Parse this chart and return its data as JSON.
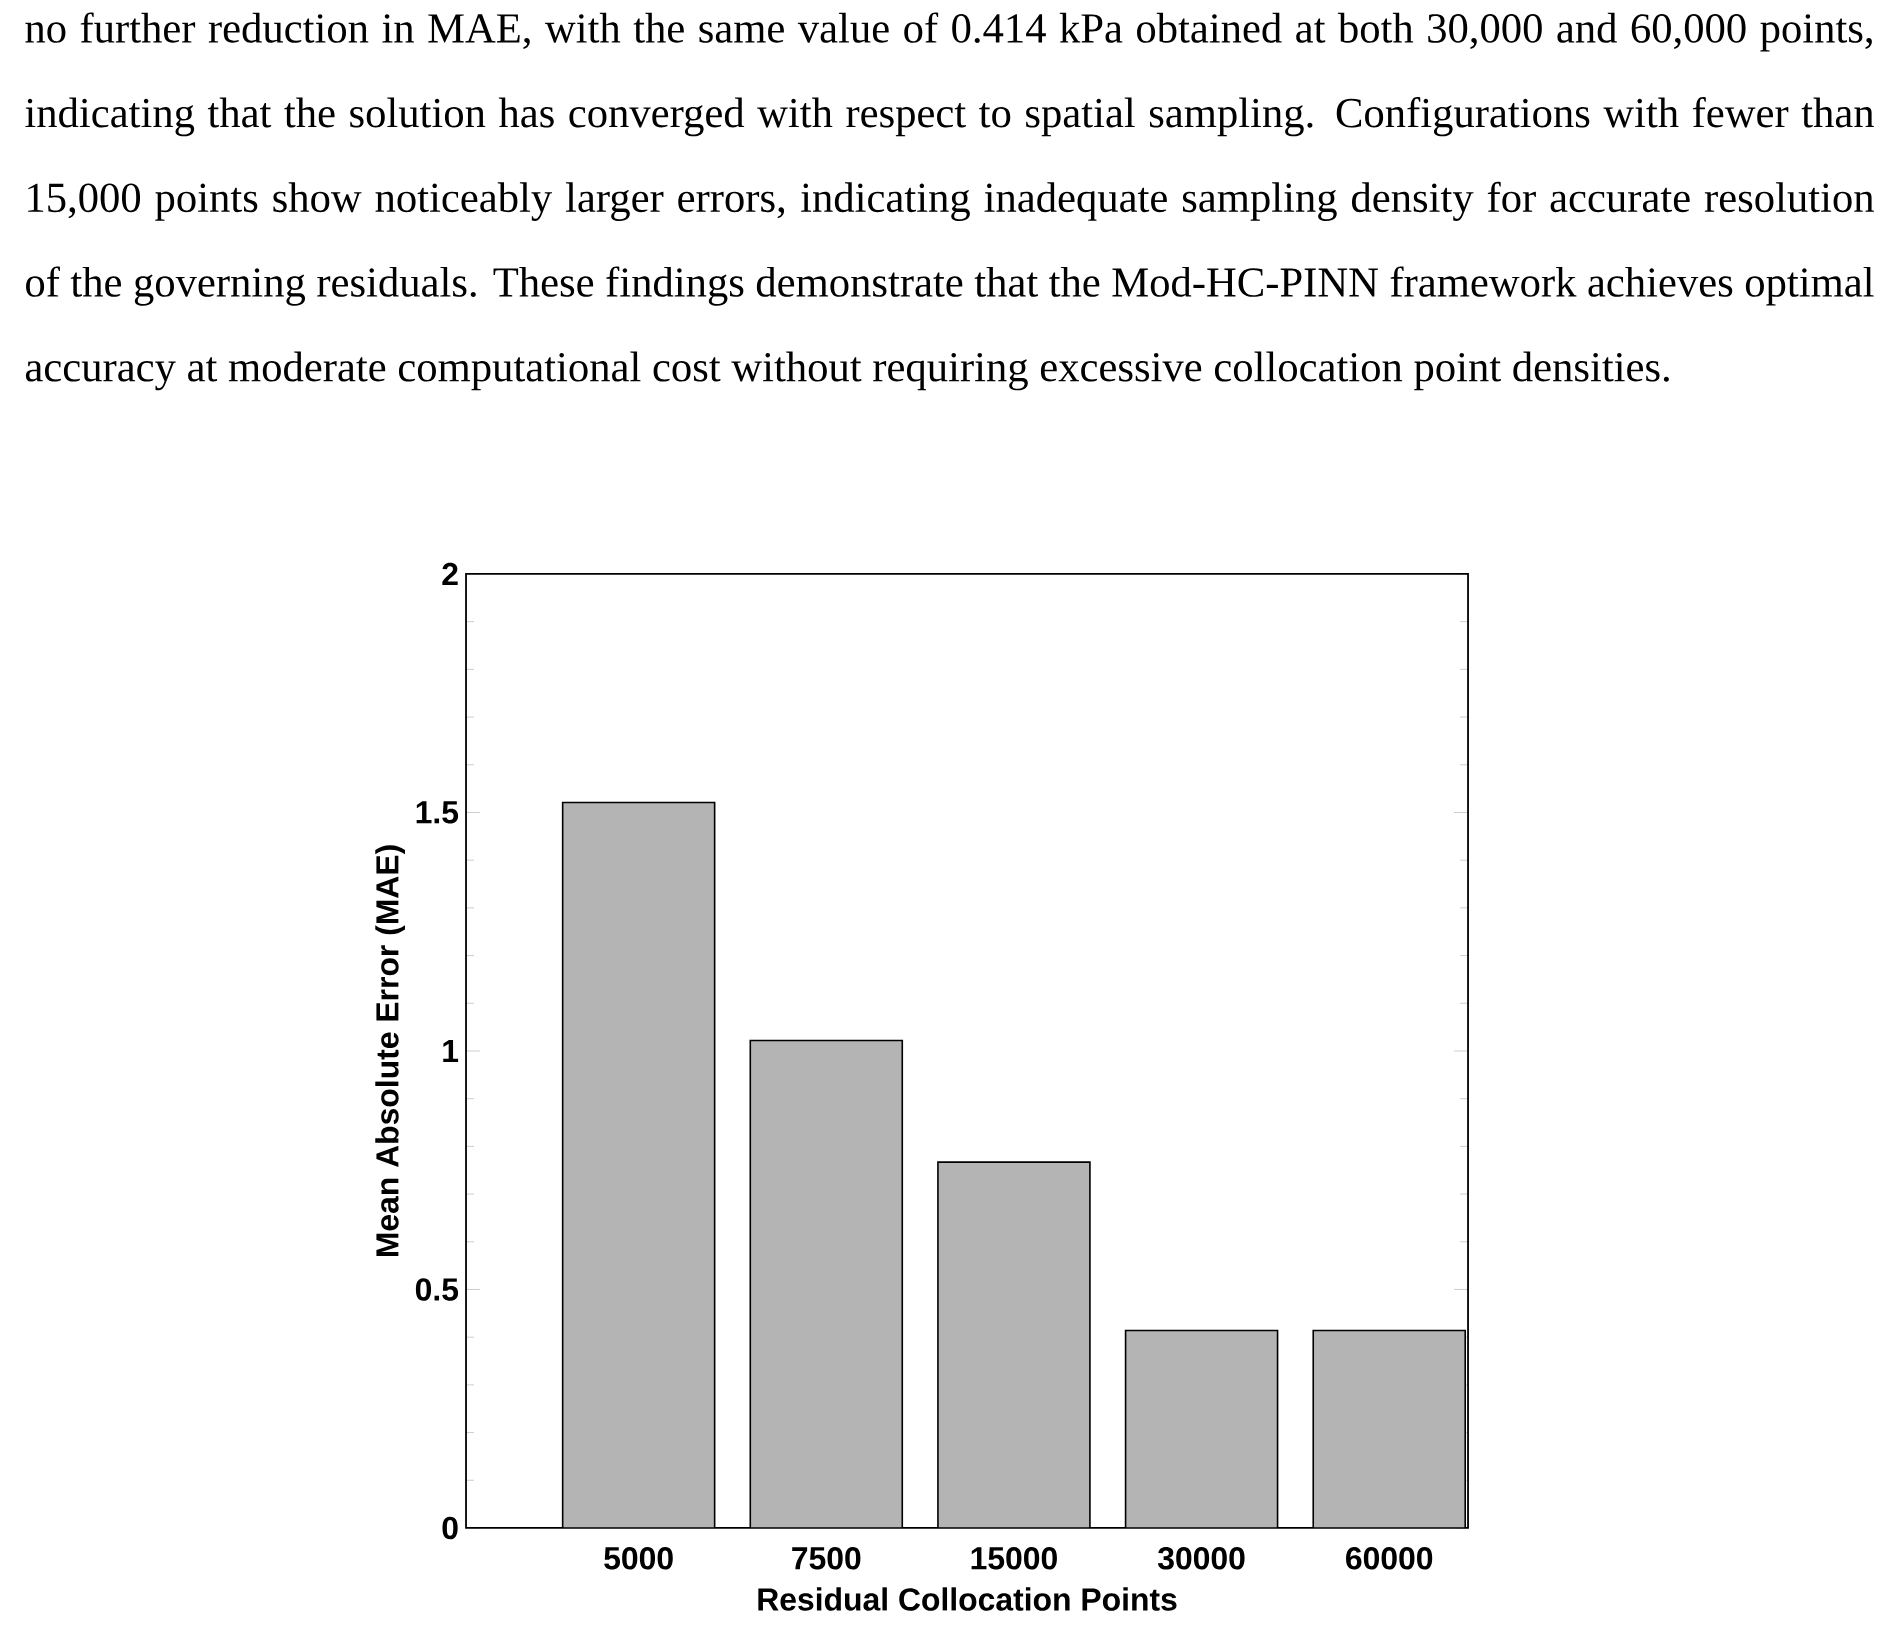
{
  "chart_data": {
    "type": "bar",
    "xlabel": "Residual Collocation Points",
    "ylabel": "Mean Absolute Error (MAE)",
    "categories": [
      "5000",
      "7500",
      "15000",
      "30000",
      "60000"
    ],
    "values": [
      1.521,
      1.022,
      0.767,
      0.414,
      0.414
    ],
    "color": "#b4b4b4",
    "ylim": [
      0,
      2
    ],
    "yticks": [
      0,
      0.5,
      1,
      1.5,
      2
    ],
    "grid": false,
    "annotations": [
      "no further reduction in MAE, with the same value of 0.414 kPa obtained at both 30,000 and 60,000 points, indicating that the solution has converged with respect to spatial sampling. Configurations with fewer than 15,000 points show noticeably larger errors, indicating inadequate sampling density for accurate resolution of the governing residuals. These findings demonstrate that the Mod-HC-PINN framework achieves optimal accuracy at moderate computational cost without requiring excessive collocation point densities."
    ]
  }
}
